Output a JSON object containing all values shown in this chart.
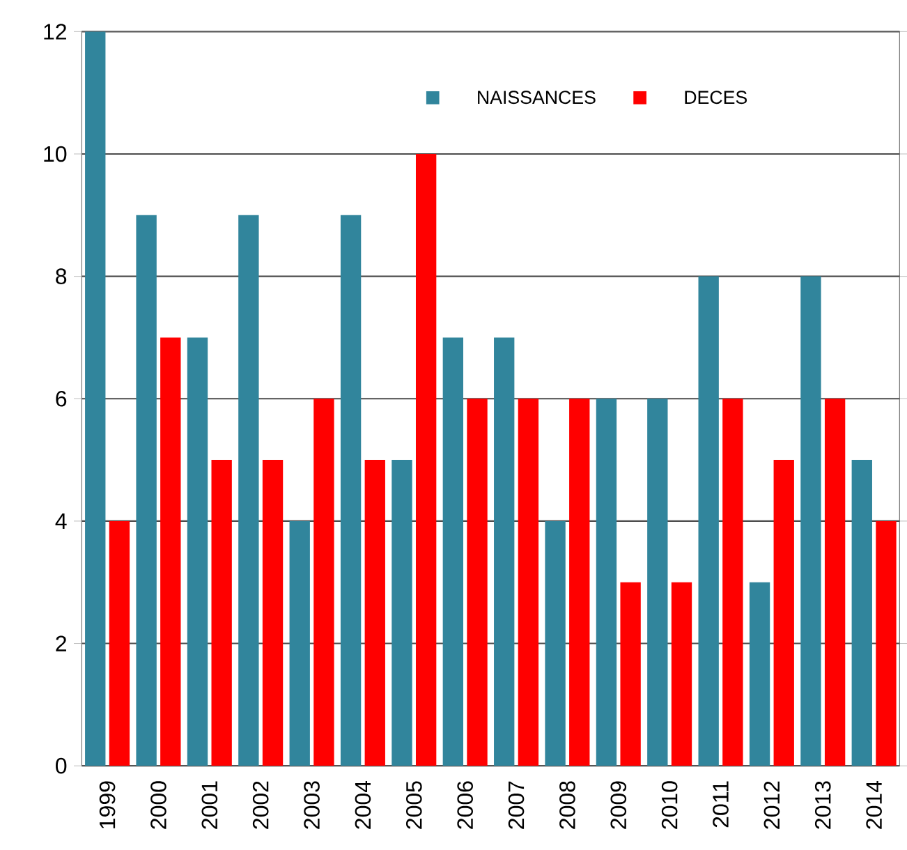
{
  "chart_data": {
    "type": "bar",
    "categories": [
      "1999",
      "2000",
      "2001",
      "2002",
      "2003",
      "2004",
      "2005",
      "2006",
      "2007",
      "2008",
      "2009",
      "2010",
      "2011",
      "2012",
      "2013",
      "2014"
    ],
    "series": [
      {
        "name": "NAISSANCES",
        "color": "#31859c",
        "values": [
          12,
          9,
          7,
          9,
          4,
          9,
          5,
          7,
          7,
          4,
          6,
          6,
          8,
          3,
          8,
          5
        ]
      },
      {
        "name": "DECES",
        "color": "#ff0000",
        "values": [
          4,
          7,
          5,
          5,
          6,
          5,
          10,
          6,
          6,
          6,
          3,
          3,
          6,
          5,
          6,
          4
        ]
      }
    ],
    "ylim": [
      0,
      12
    ],
    "yticks": [
      0,
      2,
      4,
      6,
      8,
      10,
      12
    ],
    "grid": "y",
    "legend": "top"
  }
}
